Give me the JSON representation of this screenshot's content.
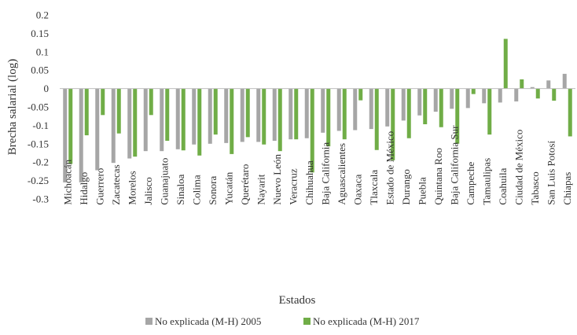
{
  "chart_data": {
    "type": "bar",
    "xlabel": "Estados",
    "ylabel": "Brecha salarial (log)",
    "ylim": [
      -0.3,
      0.2
    ],
    "yticks": [
      "0.2",
      "0.15",
      "0.1",
      "0.05",
      "0",
      "-0.05",
      "-0.1",
      "-0.15",
      "-0.2",
      "-0.25",
      "-0.3"
    ],
    "grid": false,
    "legend_position": "bottom",
    "categories": [
      "Michoacán",
      "Hidalgo",
      "Guerrero",
      "Zacatecas",
      "Morelos",
      "Jalisco",
      "Guanajuato",
      "Sinaloa",
      "Colima",
      "Sonora",
      "Yucatán",
      "Querétaro",
      "Nayarit",
      "Nuevo León",
      "Veracruz",
      "Chihuahua",
      "Baja California",
      "Aguascalientes",
      "Oaxaca",
      "Tlaxcala",
      "Estado de México",
      "Durango",
      "Puebla",
      "Quintana Roo",
      "Baja California Sur",
      "Campeche",
      "Tamaulipas",
      "Coahuila",
      "Ciudad de México",
      "Tabasco",
      "San Luis Potosí",
      "Chiapas"
    ],
    "series": [
      {
        "name": "No explicada (M-H) 2005",
        "color": "#a6a6a6",
        "values": [
          -0.255,
          -0.255,
          -0.222,
          -0.202,
          -0.19,
          -0.17,
          -0.17,
          -0.165,
          -0.152,
          -0.15,
          -0.148,
          -0.145,
          -0.145,
          -0.142,
          -0.138,
          -0.135,
          -0.12,
          -0.115,
          -0.113,
          -0.11,
          -0.103,
          -0.087,
          -0.073,
          -0.063,
          -0.055,
          -0.053,
          -0.04,
          -0.038,
          -0.035,
          0.004,
          0.022,
          0.04
        ]
      },
      {
        "name": "No explicada (M-H) 2017",
        "color": "#70ad47",
        "values": [
          -0.205,
          -0.127,
          -0.072,
          -0.122,
          -0.185,
          -0.072,
          -0.142,
          -0.168,
          -0.182,
          -0.125,
          -0.178,
          -0.132,
          -0.152,
          -0.17,
          -0.138,
          -0.228,
          -0.157,
          -0.138,
          -0.032,
          -0.167,
          -0.195,
          -0.135,
          -0.097,
          -0.105,
          -0.15,
          -0.015,
          -0.125,
          0.135,
          0.025,
          -0.027,
          -0.033,
          -0.13
        ]
      }
    ]
  }
}
